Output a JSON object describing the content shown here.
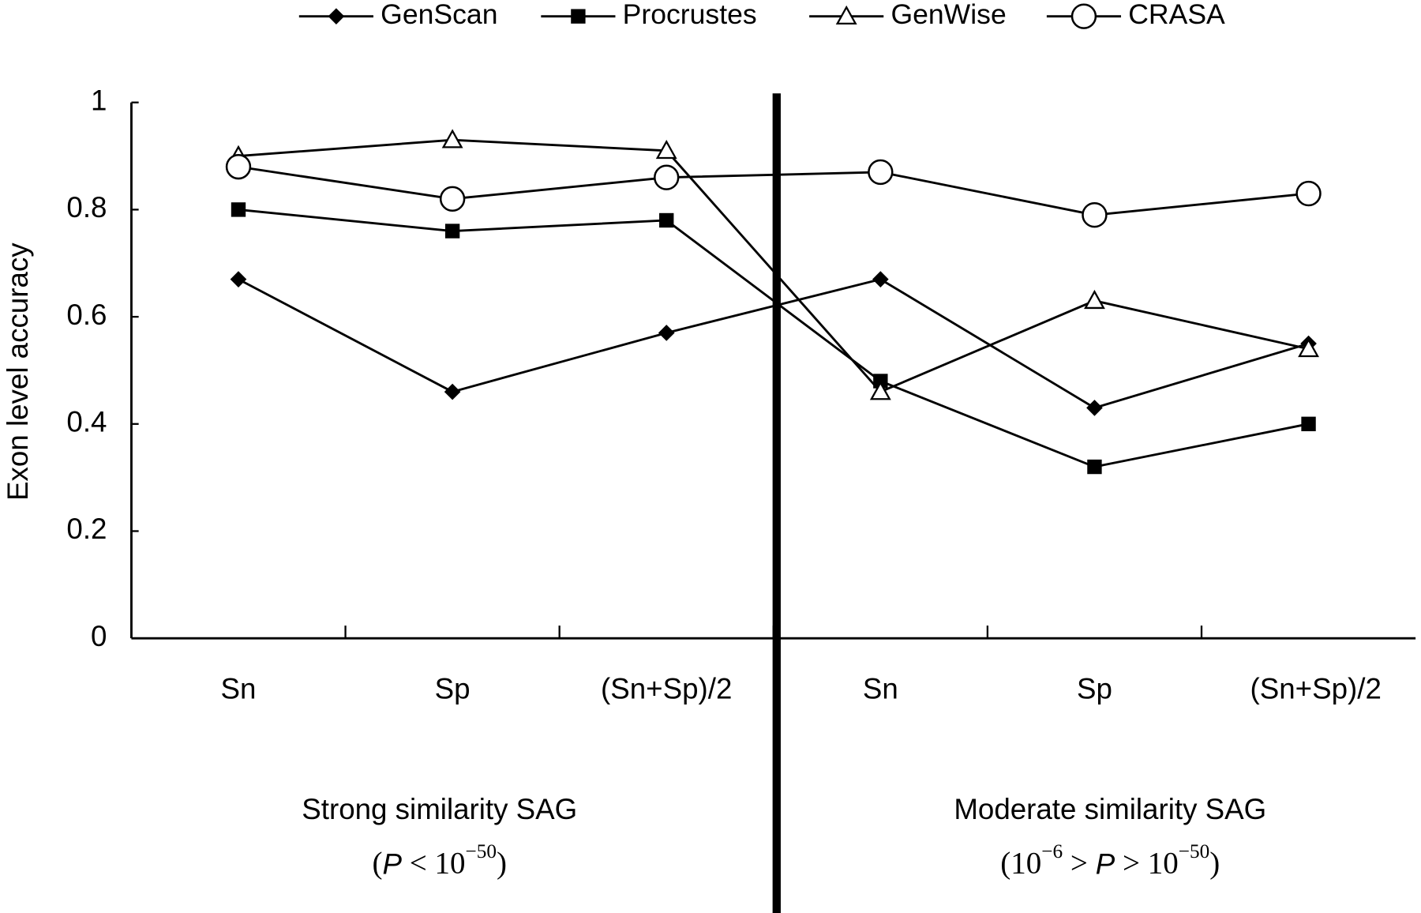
{
  "chart_data": {
    "type": "line",
    "y_label": "Exon level accuracy",
    "categories": [
      "Sn",
      "Sp",
      "(Sn+Sp)/2",
      "Sn",
      "Sp",
      "(Sn+Sp)/2"
    ],
    "series": [
      {
        "name": "GenScan",
        "color": "#000000",
        "marker": "diamond",
        "values": [
          0.67,
          0.46,
          0.57,
          0.67,
          0.43,
          0.55
        ]
      },
      {
        "name": "Procrustes",
        "color": "#000000",
        "marker": "square",
        "values": [
          0.8,
          0.76,
          0.78,
          0.48,
          0.32,
          0.4
        ]
      },
      {
        "name": "GenWise",
        "color": "#000000",
        "marker": "triangle",
        "values": [
          0.9,
          0.93,
          0.91,
          0.46,
          0.63,
          0.54
        ]
      },
      {
        "name": "CRASA",
        "color": "#000000",
        "marker": "circle",
        "values": [
          0.88,
          0.82,
          0.86,
          0.87,
          0.79,
          0.83
        ]
      }
    ],
    "ylim": [
      0,
      1
    ],
    "yticks": [
      0,
      0.2,
      0.4,
      0.6,
      0.8,
      1
    ],
    "groups": [
      {
        "label": "Strong similarity SAG",
        "condition": [
          {
            "text": "("
          },
          {
            "text": "P",
            "style": "italic"
          },
          {
            "text": " < 10"
          },
          {
            "text": "−50",
            "style": "sup"
          },
          {
            "text": ")"
          }
        ]
      },
      {
        "label": "Moderate similarity SAG",
        "condition": [
          {
            "text": "(10"
          },
          {
            "text": "−6",
            "style": "sup"
          },
          {
            "text": " > "
          },
          {
            "text": "P",
            "style": "italic"
          },
          {
            "text": " > 10"
          },
          {
            "text": "−50",
            "style": "sup"
          },
          {
            "text": ")"
          }
        ]
      }
    ]
  }
}
